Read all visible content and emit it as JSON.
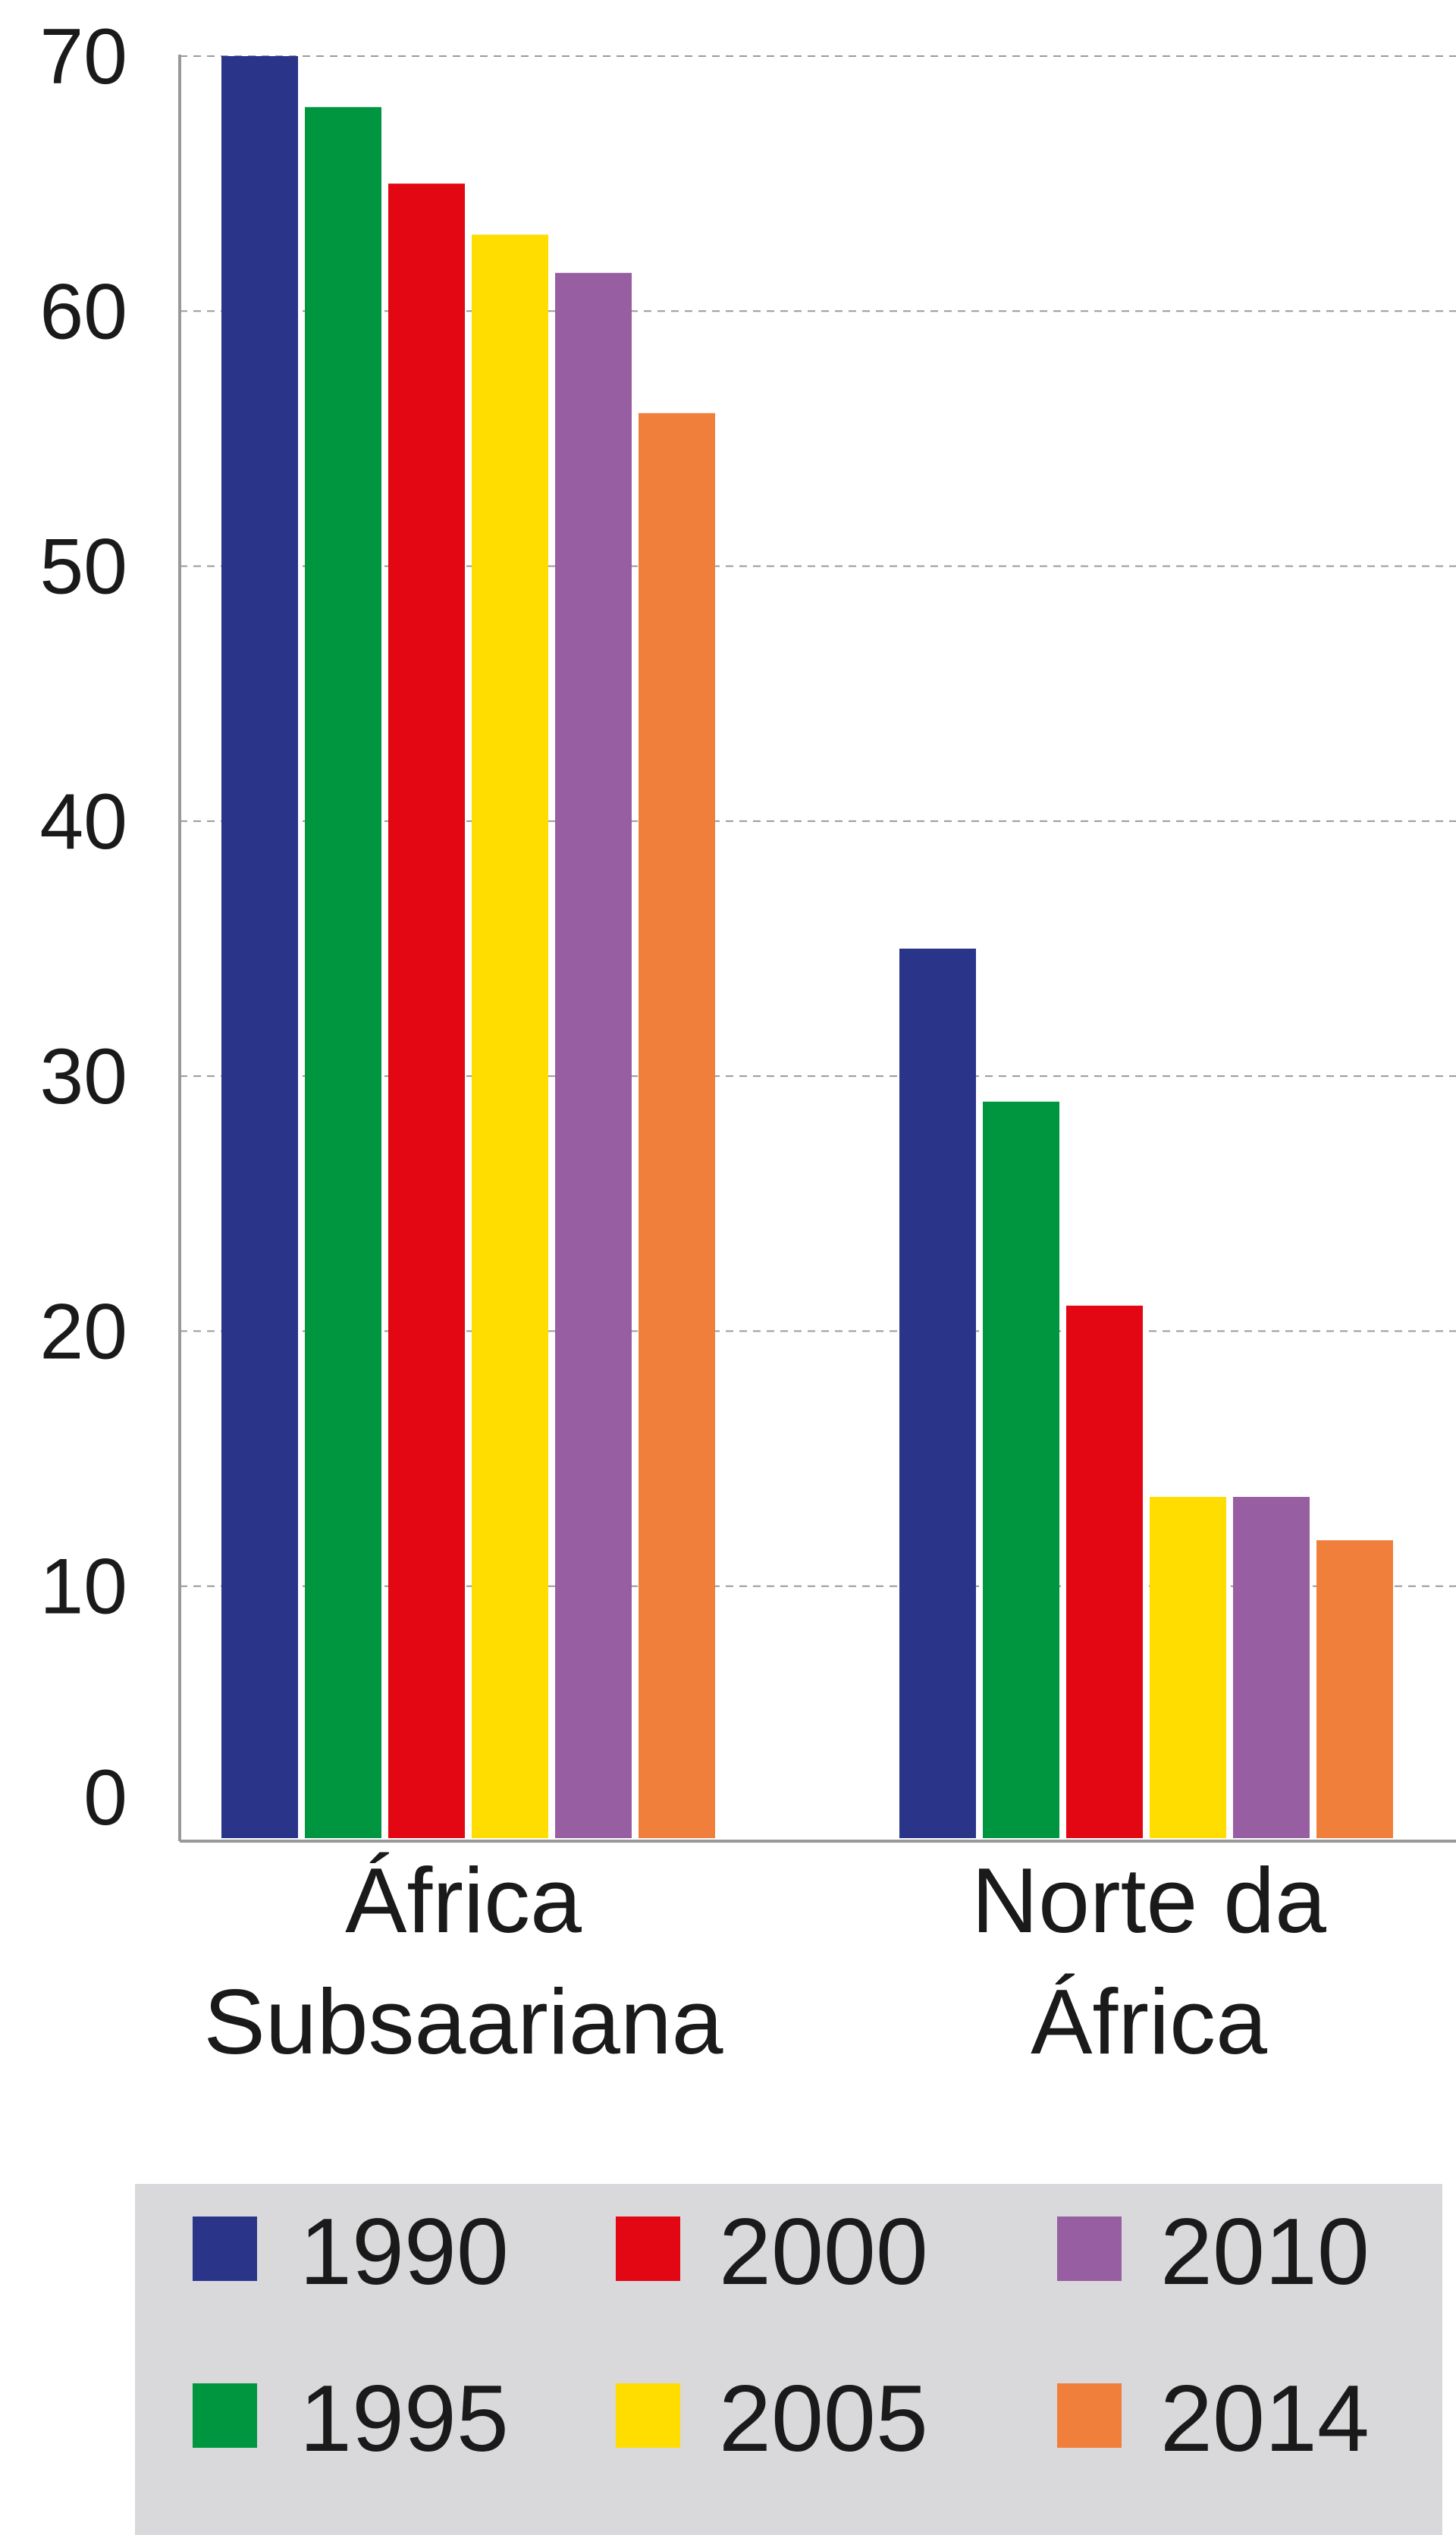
{
  "chart_data": {
    "type": "bar",
    "categories": [
      [
        "África",
        "Subsaariana"
      ],
      [
        "Norte da",
        "África"
      ]
    ],
    "series": [
      {
        "name": "1990",
        "color": "#2a3589",
        "values": [
          70,
          35
        ]
      },
      {
        "name": "1995",
        "color": "#00963f",
        "values": [
          68,
          29
        ]
      },
      {
        "name": "2000",
        "color": "#e30613",
        "values": [
          65,
          21
        ]
      },
      {
        "name": "2005",
        "color": "#ffdd00",
        "values": [
          63,
          13.5
        ]
      },
      {
        "name": "2010",
        "color": "#985ea2",
        "values": [
          61.5,
          13.5
        ]
      },
      {
        "name": "2014",
        "color": "#f07f3c",
        "values": [
          56,
          11.8
        ]
      }
    ],
    "yticks": [
      "0",
      "10",
      "20",
      "30",
      "40",
      "50",
      "60",
      "70"
    ],
    "ylim": [
      0,
      70
    ],
    "grid": true,
    "legend_position": "bottom",
    "legend_background": "#d9d9db"
  }
}
